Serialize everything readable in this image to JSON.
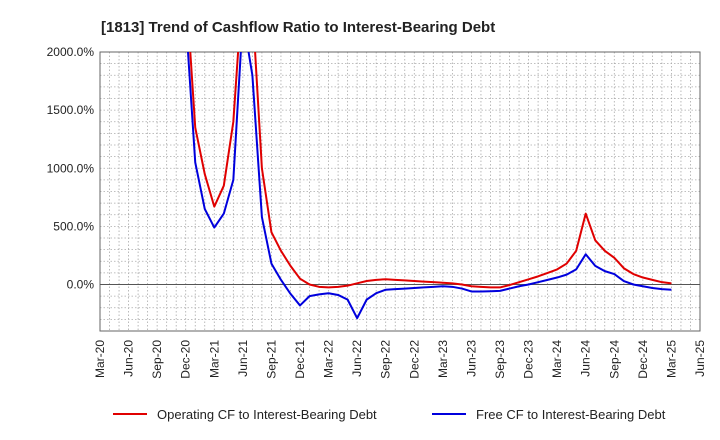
{
  "chart_data": {
    "type": "line",
    "title": "[1813]  Trend of Cashflow Ratio to Interest-Bearing Debt",
    "xlabel": "",
    "ylabel": "",
    "x_ticks": [
      "Mar-20",
      "Jun-20",
      "Sep-20",
      "Dec-20",
      "Mar-21",
      "Jun-21",
      "Sep-21",
      "Dec-21",
      "Mar-22",
      "Jun-22",
      "Sep-22",
      "Dec-22",
      "Mar-23",
      "Jun-23",
      "Sep-23",
      "Dec-23",
      "Mar-24",
      "Jun-24",
      "Sep-24",
      "Dec-24",
      "Mar-25",
      "Jun-25"
    ],
    "y_ticks": [
      "2000.0%",
      "1500.0%",
      "1000.0%",
      "500.0%",
      "0.0%"
    ],
    "y_tick_values": [
      2000,
      1500,
      1000,
      500,
      0
    ],
    "ylim": [
      -400,
      2000
    ],
    "grid": true,
    "legend_position": "bottom",
    "x": [
      "Dec-20",
      "Jan-21",
      "Feb-21",
      "Mar-21",
      "Apr-21",
      "May-21",
      "Jun-21",
      "Jul-21",
      "Aug-21",
      "Sep-21",
      "Oct-21",
      "Nov-21",
      "Dec-21",
      "Jan-22",
      "Feb-22",
      "Mar-22",
      "Apr-22",
      "May-22",
      "Jun-22",
      "Jul-22",
      "Aug-22",
      "Sep-22",
      "Oct-22",
      "Nov-22",
      "Dec-22",
      "Jan-23",
      "Feb-23",
      "Mar-23",
      "Apr-23",
      "May-23",
      "Jun-23",
      "Jul-23",
      "Aug-23",
      "Sep-23",
      "Oct-23",
      "Nov-23",
      "Dec-23",
      "Jan-24",
      "Feb-24",
      "Mar-24",
      "Apr-24",
      "May-24",
      "Jun-24",
      "Jul-24",
      "Aug-24",
      "Sep-24",
      "Oct-24",
      "Nov-24",
      "Dec-24",
      "Jan-25",
      "Feb-25",
      "Mar-25"
    ],
    "series": [
      {
        "name": "Operating CF to Interest-Bearing Debt",
        "color": "#e00000",
        "values": [
          2600,
          1350,
          950,
          670,
          850,
          1400,
          2600,
          2400,
          1000,
          450,
          290,
          160,
          50,
          0,
          -20,
          -25,
          -20,
          -10,
          10,
          30,
          40,
          45,
          40,
          35,
          30,
          25,
          20,
          15,
          10,
          0,
          -15,
          -20,
          -25,
          -25,
          -5,
          20,
          45,
          70,
          100,
          130,
          180,
          290,
          610,
          380,
          290,
          230,
          140,
          90,
          60,
          40,
          20,
          10
        ]
      },
      {
        "name": "Free CF to Interest-Bearing Debt",
        "color": "#0000dd",
        "values": [
          2300,
          1050,
          650,
          490,
          610,
          900,
          2300,
          1800,
          580,
          180,
          40,
          -80,
          -180,
          -100,
          -85,
          -75,
          -90,
          -130,
          -290,
          -130,
          -75,
          -45,
          -40,
          -35,
          -30,
          -25,
          -20,
          -15,
          -20,
          -35,
          -60,
          -60,
          -58,
          -55,
          -35,
          -15,
          0,
          20,
          40,
          60,
          85,
          130,
          260,
          160,
          115,
          90,
          30,
          0,
          -15,
          -30,
          -40,
          -45
        ]
      }
    ]
  }
}
